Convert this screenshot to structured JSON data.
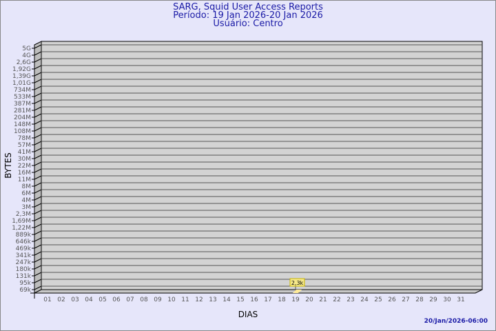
{
  "chart_data": {
    "type": "bar",
    "title": "SARG, Squid User Access Reports",
    "subtitle": [
      "Período: 19 Jan 2026-20 Jan 2026",
      "Usuário: Centro"
    ],
    "xlabel": "DIAS",
    "ylabel": "BYTES",
    "categories": [
      "01",
      "02",
      "03",
      "04",
      "05",
      "06",
      "07",
      "08",
      "09",
      "10",
      "11",
      "12",
      "13",
      "14",
      "15",
      "16",
      "17",
      "18",
      "19",
      "20",
      "21",
      "22",
      "23",
      "24",
      "25",
      "26",
      "27",
      "28",
      "29",
      "30",
      "31"
    ],
    "y_tick_labels": [
      "5G",
      "4G",
      "2,6G",
      "1,92G",
      "1,39G",
      "1,01G",
      "734M",
      "533M",
      "387M",
      "281M",
      "204M",
      "148M",
      "108M",
      "78M",
      "57M",
      "41M",
      "30M",
      "22M",
      "16M",
      "11M",
      "8M",
      "6M",
      "4M",
      "3M",
      "2,3M",
      "1,69M",
      "1,22M",
      "889k",
      "646k",
      "469k",
      "341k",
      "247k",
      "180k",
      "131k",
      "95k",
      "69k"
    ],
    "series": [
      {
        "values": [
          null,
          null,
          null,
          null,
          null,
          null,
          null,
          null,
          null,
          null,
          null,
          null,
          null,
          null,
          null,
          null,
          null,
          null,
          2300,
          null,
          null,
          null,
          null,
          null,
          null,
          null,
          null,
          null,
          null,
          null,
          null
        ]
      }
    ],
    "data_labels": {
      "19": "2,3k"
    },
    "y_scale": "log",
    "grid": true,
    "colors": {
      "background": "#e6e6fa",
      "plot": "#d3d3d3",
      "bar": "#ffeb99",
      "label_bg": "#f6e98a",
      "title": "#1a1aa6"
    }
  },
  "footer": "20/Jan/2026-06:00"
}
